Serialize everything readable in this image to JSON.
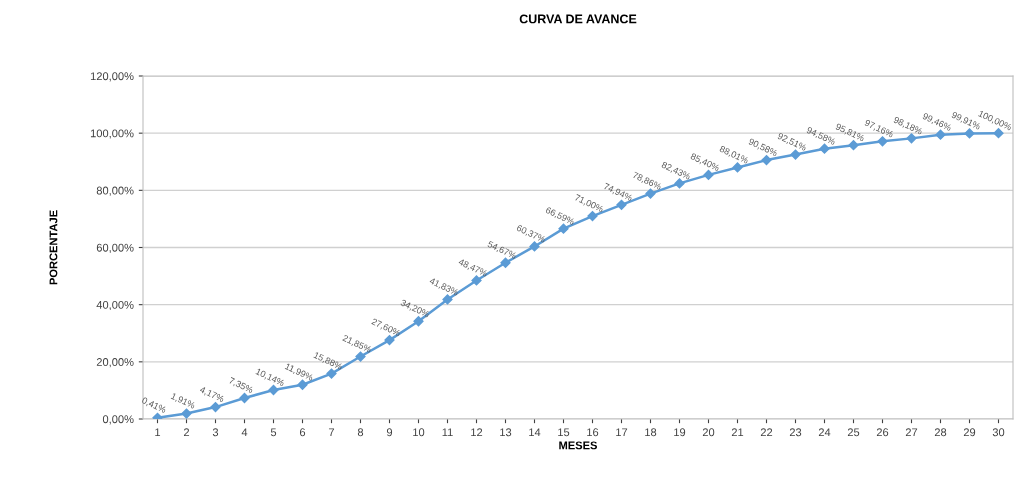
{
  "chart_data": {
    "type": "line",
    "title": "CURVA DE AVANCE",
    "xlabel": "MESES",
    "ylabel": "PORCENTAJE",
    "categories": [
      "1",
      "2",
      "3",
      "4",
      "5",
      "6",
      "7",
      "8",
      "9",
      "10",
      "11",
      "12",
      "13",
      "14",
      "15",
      "16",
      "17",
      "18",
      "19",
      "20",
      "21",
      "22",
      "23",
      "24",
      "25",
      "26",
      "27",
      "28",
      "29",
      "30"
    ],
    "series": [
      {
        "color": "#5b9bd5",
        "values": [
          0.41,
          1.91,
          4.17,
          7.35,
          10.14,
          11.99,
          15.88,
          21.85,
          27.6,
          34.2,
          41.83,
          48.47,
          54.67,
          60.37,
          66.59,
          71.0,
          74.94,
          78.86,
          82.43,
          85.4,
          88.01,
          90.58,
          92.51,
          94.58,
          95.81,
          97.16,
          98.18,
          99.46,
          99.91,
          100.0
        ],
        "value_labels": [
          "0,41%",
          "1,91%",
          "4,17%",
          "7,35%",
          "10,14%",
          "11,99%",
          "15,88%",
          "21,85%",
          "27,60%",
          "34,20%",
          "41,83%",
          "48,47%",
          "54,67%",
          "60,37%",
          "66,59%",
          "71,00%",
          "74,94%",
          "78,86%",
          "82,43%",
          "85,40%",
          "88,01%",
          "90,58%",
          "92,51%",
          "94,58%",
          "95,81%",
          "97,16%",
          "98,18%",
          "99,46%",
          "99,91%",
          "100,00%"
        ]
      }
    ],
    "ylim": [
      0,
      120
    ],
    "yticks": [
      {
        "value": 0,
        "label": "0,00%"
      },
      {
        "value": 20,
        "label": "20,00%"
      },
      {
        "value": 40,
        "label": "40,00%"
      },
      {
        "value": 60,
        "label": "60,00%"
      },
      {
        "value": 80,
        "label": "80,00%"
      },
      {
        "value": 100,
        "label": "100,00%"
      },
      {
        "value": 120,
        "label": "120,00%"
      }
    ],
    "grid": "y",
    "marker": "diamond",
    "line_style": "solid",
    "legend": false
  }
}
